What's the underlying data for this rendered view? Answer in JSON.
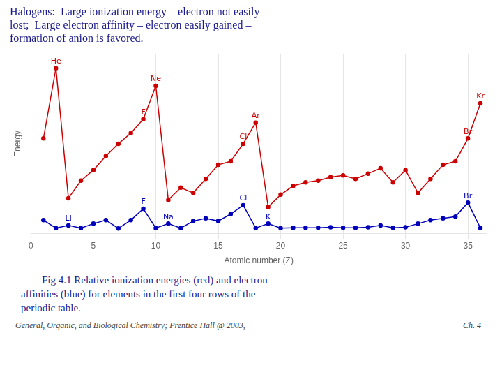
{
  "chart_data": {
    "type": "line",
    "title": [
      "Halogens:  Large ionization energy – electron not easily",
      "lost;  Large electron affinity – electron easily gained –",
      "formation of anion is favored."
    ],
    "caption": [
      "        Fig 4.1 Relative ionization energies (red) and electron",
      "affinities (blue) for elements in the first four rows of the",
      "periodic table."
    ],
    "footer": [
      "General, Organic, and Biological Chemistry; Prentice Hall @ 2003,",
      "Ch. 4"
    ],
    "xlabel": "Atomic number (Z)",
    "ylabel": "Energy",
    "x": [
      1,
      2,
      3,
      4,
      5,
      6,
      7,
      8,
      9,
      10,
      11,
      12,
      13,
      14,
      15,
      16,
      17,
      18,
      19,
      20,
      21,
      22,
      23,
      24,
      25,
      26,
      27,
      28,
      29,
      30,
      31,
      32,
      33,
      34,
      35,
      36
    ],
    "series": [
      {
        "color": "#cc0000",
        "marker": "circle",
        "values": [
          0.52,
          0.92,
          0.18,
          0.28,
          0.34,
          0.42,
          0.49,
          0.55,
          0.63,
          0.82,
          0.17,
          0.24,
          0.21,
          0.29,
          0.37,
          0.39,
          0.49,
          0.61,
          0.13,
          0.2,
          0.25,
          0.27,
          0.28,
          0.3,
          0.31,
          0.29,
          0.32,
          0.35,
          0.27,
          0.34,
          0.21,
          0.29,
          0.37,
          0.39,
          0.52,
          0.72
        ]
      },
      {
        "color": "#0000bb",
        "marker": "circle",
        "values": [
          0.055,
          0.01,
          0.025,
          0.01,
          0.035,
          0.055,
          0.008,
          0.055,
          0.12,
          0.01,
          0.035,
          0.01,
          0.05,
          0.065,
          0.05,
          0.09,
          0.14,
          0.01,
          0.035,
          0.01,
          0.012,
          0.012,
          0.012,
          0.015,
          0.012,
          0.012,
          0.015,
          0.025,
          0.012,
          0.015,
          0.035,
          0.055,
          0.065,
          0.075,
          0.155,
          0.01
        ]
      }
    ],
    "annotations": [
      {
        "text": "He",
        "x": 2,
        "y": 0.92,
        "color": "#cc0000"
      },
      {
        "text": "Ne",
        "x": 10,
        "y": 0.82,
        "color": "#cc0000"
      },
      {
        "text": "F",
        "x": 9,
        "y": 0.63,
        "color": "#cc0000"
      },
      {
        "text": "Ar",
        "x": 18,
        "y": 0.61,
        "color": "#cc0000"
      },
      {
        "text": "Cl",
        "x": 17,
        "y": 0.49,
        "color": "#cc0000"
      },
      {
        "text": "Kr",
        "x": 36,
        "y": 0.72,
        "color": "#cc0000"
      },
      {
        "text": "Br",
        "x": 35,
        "y": 0.52,
        "color": "#cc0000"
      },
      {
        "text": "Li",
        "x": 3,
        "y": 0.025,
        "color": "#0000bb"
      },
      {
        "text": "F",
        "x": 9,
        "y": 0.12,
        "color": "#0000bb"
      },
      {
        "text": "Na",
        "x": 11,
        "y": 0.035,
        "color": "#0000bb"
      },
      {
        "text": "Cl",
        "x": 17,
        "y": 0.14,
        "color": "#0000bb"
      },
      {
        "text": "K",
        "x": 19,
        "y": 0.035,
        "color": "#0000bb"
      },
      {
        "text": "Br",
        "x": 35,
        "y": 0.155,
        "color": "#0000bb"
      }
    ],
    "xlim": [
      0,
      36.5
    ],
    "xticks": [
      0,
      5,
      10,
      15,
      20,
      25,
      30,
      35
    ],
    "ylim": [
      -0.02,
      1.0
    ],
    "tick_labels": "x",
    "grid": true
  }
}
